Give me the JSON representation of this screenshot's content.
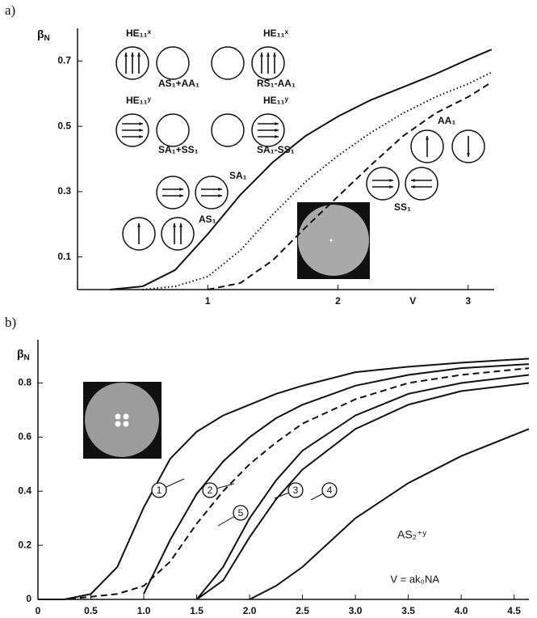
{
  "chart_data": [
    {
      "type": "line",
      "panel_label": "a)",
      "xlabel": "V",
      "ylabel": {
        "main": "β",
        "sub": "N"
      },
      "xlim": [
        0,
        3.2
      ],
      "ylim": [
        0,
        0.8
      ],
      "xticks": [
        1,
        2,
        3
      ],
      "yticks": [
        0.1,
        0.3,
        0.5,
        0.7
      ],
      "x": [
        0.25,
        0.5,
        0.75,
        1,
        1.25,
        1.5,
        1.75,
        2,
        2.25,
        2.5,
        2.75,
        3,
        3.18
      ],
      "series": [
        {
          "color": "#111111",
          "style": "solid",
          "values": [
            0,
            0.01,
            0.06,
            0.17,
            0.29,
            0.39,
            0.47,
            0.53,
            0.58,
            0.62,
            0.66,
            0.705,
            0.735
          ]
        },
        {
          "color": "#111111",
          "style": "dotted",
          "values": [
            null,
            0,
            0.01,
            0.04,
            0.12,
            0.23,
            0.33,
            0.41,
            0.48,
            0.54,
            0.59,
            0.63,
            0.665
          ]
        },
        {
          "color": "#111111",
          "style": "dashed",
          "values": [
            null,
            null,
            null,
            0,
            0.02,
            0.09,
            0.19,
            0.285,
            0.38,
            0.47,
            0.54,
            0.59,
            0.635
          ]
        }
      ],
      "annotations": [
        "HE₁₁ˣ",
        "AS₁+AA₁",
        "HE₁₁ˣ",
        "RS₁-AA₁",
        "HE₁₁ʸ",
        "SA₁+SS₁",
        "HE₁₁ʸ",
        "SA₁-SS₁",
        "SA₁",
        "AS₁",
        "AA₁",
        "SS₁"
      ]
    },
    {
      "type": "line",
      "panel_label": "b)",
      "xlabel": "V = ak₀NA",
      "ylabel": {
        "main": "β",
        "sub": "N"
      },
      "xlim": [
        0,
        4.64
      ],
      "ylim": [
        0,
        0.96
      ],
      "xticks": [
        0,
        0.5,
        {
          "value": 1,
          "label": "1.0"
        },
        1.5,
        {
          "value": 2,
          "label": "2.0"
        },
        2.5,
        {
          "value": 3,
          "label": "3.0"
        },
        3.5,
        {
          "value": 4,
          "label": "4.0"
        },
        4.5
      ],
      "yticks": [
        0,
        0.2,
        0.4,
        0.6,
        0.8
      ],
      "x": [
        0,
        0.25,
        0.5,
        0.75,
        1,
        1.25,
        1.5,
        1.75,
        2,
        2.25,
        2.5,
        3,
        3.5,
        4,
        4.64
      ],
      "series": [
        {
          "name": "1",
          "color": "#111111",
          "style": "solid",
          "values": [
            0,
            0,
            0.02,
            0.12,
            0.34,
            0.52,
            0.62,
            0.68,
            0.72,
            0.76,
            0.79,
            0.84,
            0.86,
            0.875,
            0.89
          ]
        },
        {
          "name": "2",
          "color": "#111111",
          "style": "solid",
          "values": [
            null,
            null,
            null,
            null,
            0.02,
            0.22,
            0.39,
            0.51,
            0.6,
            0.67,
            0.72,
            0.79,
            0.83,
            0.855,
            0.87
          ]
        },
        {
          "name": "5",
          "color": "#111111",
          "style": "dashed",
          "values": [
            0,
            0,
            0.01,
            0.02,
            0.05,
            0.14,
            0.28,
            0.4,
            0.5,
            0.58,
            0.65,
            0.74,
            0.8,
            0.83,
            0.855
          ]
        },
        {
          "name": "3",
          "color": "#111111",
          "style": "solid",
          "values": [
            null,
            null,
            null,
            null,
            null,
            null,
            0,
            0.12,
            0.3,
            0.44,
            0.55,
            0.68,
            0.76,
            0.8,
            0.83
          ]
        },
        {
          "name": "4",
          "color": "#111111",
          "style": "solid",
          "values": [
            null,
            null,
            null,
            null,
            null,
            null,
            0,
            0.07,
            0.23,
            0.37,
            0.48,
            0.63,
            0.72,
            0.77,
            0.8
          ]
        },
        {
          "name": "AS₂⁺ʸ",
          "color": "#111111",
          "style": "solid",
          "values": [
            null,
            null,
            null,
            null,
            null,
            null,
            null,
            null,
            0,
            0.05,
            0.12,
            0.3,
            0.43,
            0.53,
            0.63
          ]
        }
      ]
    }
  ]
}
